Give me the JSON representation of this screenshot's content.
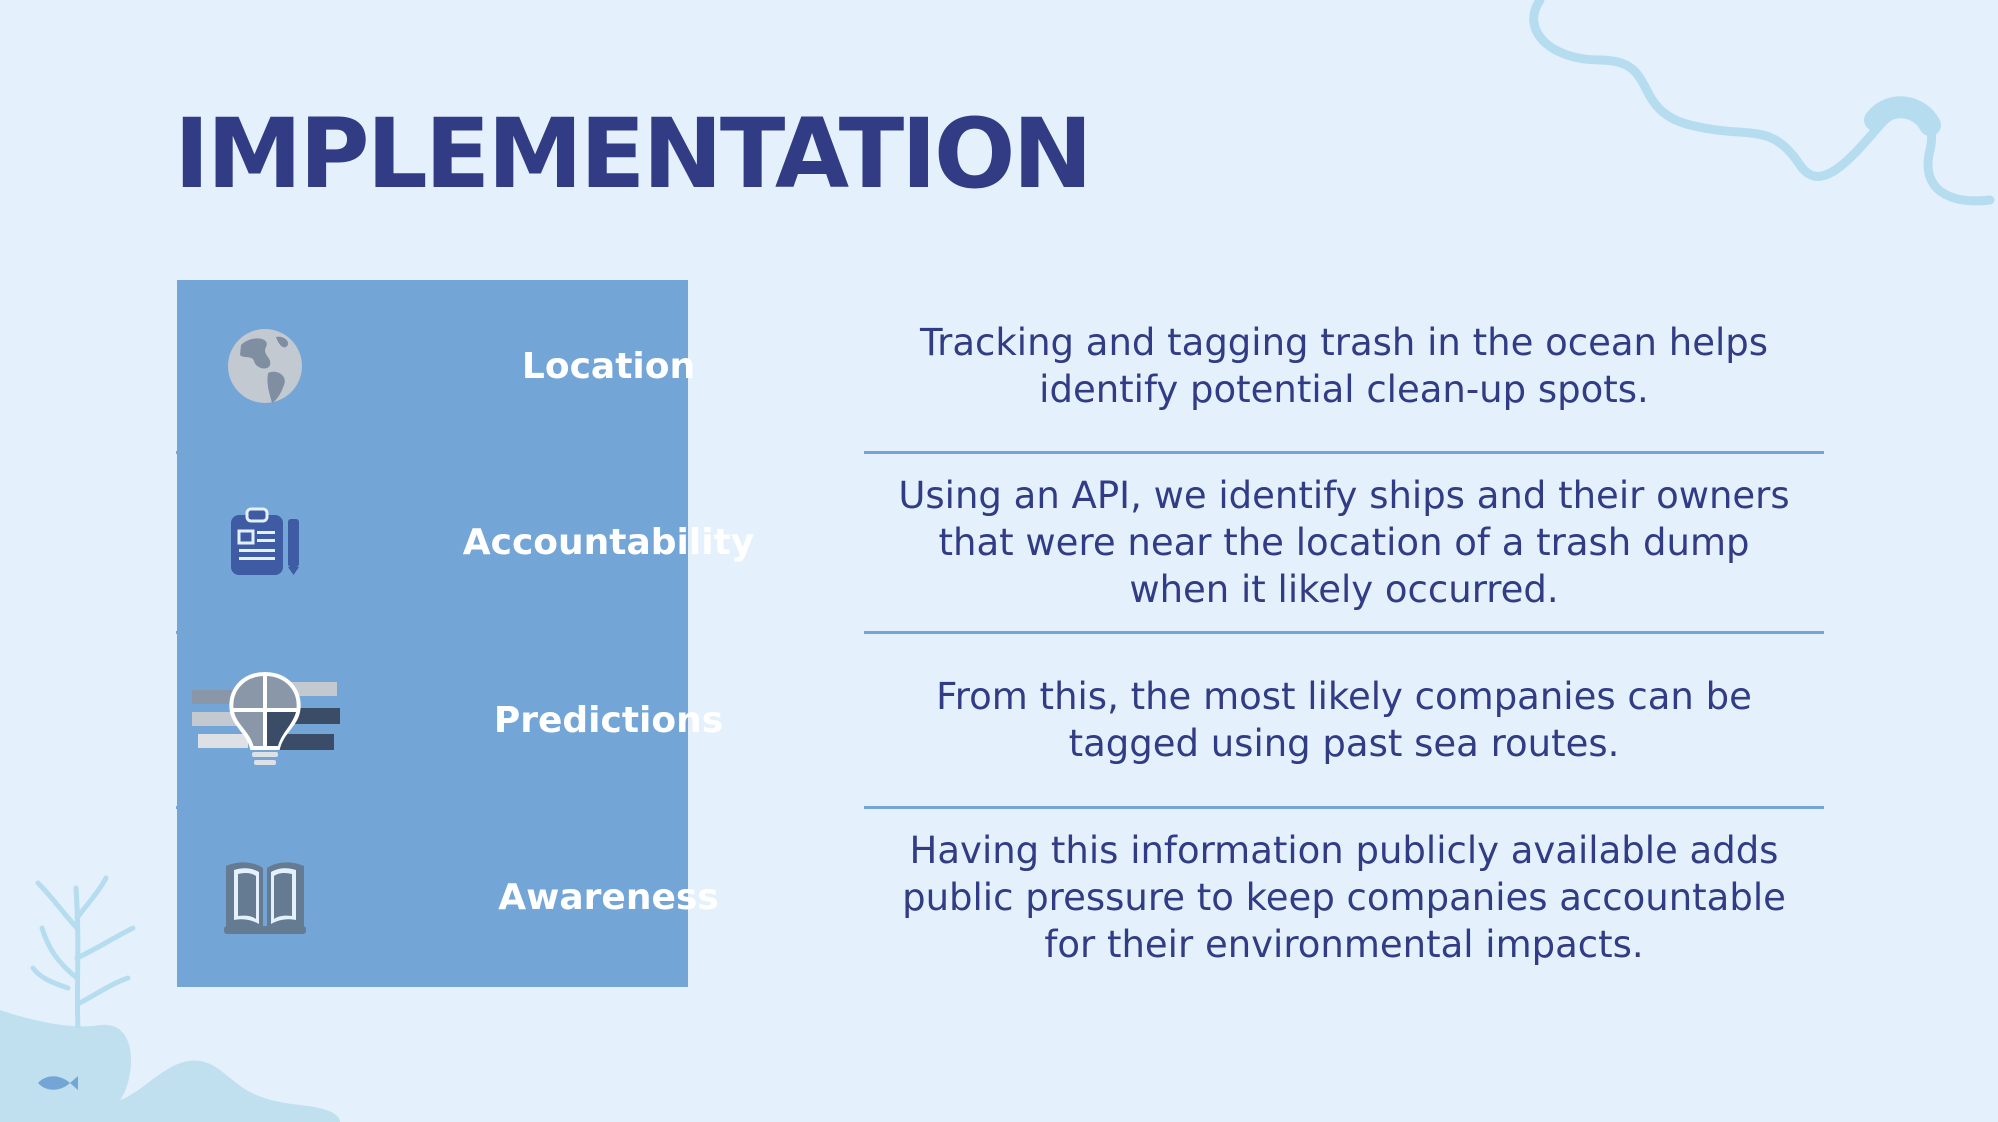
{
  "title": "IMPLEMENTATION",
  "colors": {
    "background": "#e4f1fd",
    "title": "#323c85",
    "label_column": "#73a5d7",
    "label_text": "#ffffff",
    "description": "#323c85",
    "separator": "#73a5d7"
  },
  "rows": [
    {
      "icon": "globe-icon",
      "label": "Location",
      "description": "Tracking and tagging trash in the ocean helps identify potential clean-up spots."
    },
    {
      "icon": "clipboard-icon",
      "label": "Accountability",
      "description": "Using an API, we identify ships and their owners that were near the location of a trash dump when it likely occurred."
    },
    {
      "icon": "lightbulb-bars-icon",
      "label": "Predictions",
      "description": "From this, the most likely companies can be tagged using past sea routes."
    },
    {
      "icon": "book-icon",
      "label": "Awareness",
      "description": "Having this information publicly available adds public pressure to keep companies accountable for their environmental impacts."
    }
  ],
  "decorations": [
    "wave-line-icon",
    "coral-icon",
    "fish-icon",
    "seabed-blob-icon"
  ]
}
